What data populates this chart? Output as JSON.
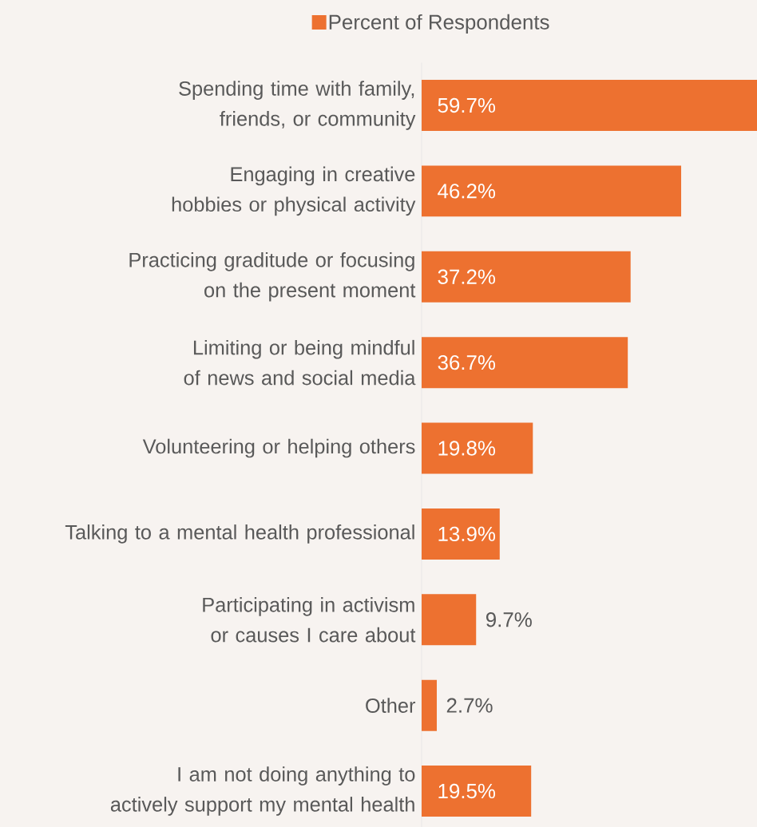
{
  "chart_data": {
    "type": "bar",
    "orientation": "horizontal",
    "categories": [
      "Spending time with family, friends, or community",
      "Engaging in creative hobbies or physical activity",
      "Practicing graditude or focusing on the present moment",
      "Limiting or being mindful of news and social media",
      "Volunteering or helping others",
      "Talking to a mental health professional",
      "Participating in activism or causes I care about",
      "Other",
      "I am not doing anything to actively support my mental health"
    ],
    "series": [
      {
        "name": "Percent of Respondents",
        "color": "#ed7130",
        "values": [
          59.7,
          46.2,
          37.2,
          36.7,
          19.8,
          13.9,
          9.7,
          2.7,
          19.5
        ],
        "value_labels": [
          "59.7%",
          "46.2%",
          "37.2%",
          "36.7%",
          "19.8%",
          "13.9%",
          "9.7%",
          "2.7%",
          "19.5%"
        ]
      }
    ],
    "legend": "top"
  }
}
